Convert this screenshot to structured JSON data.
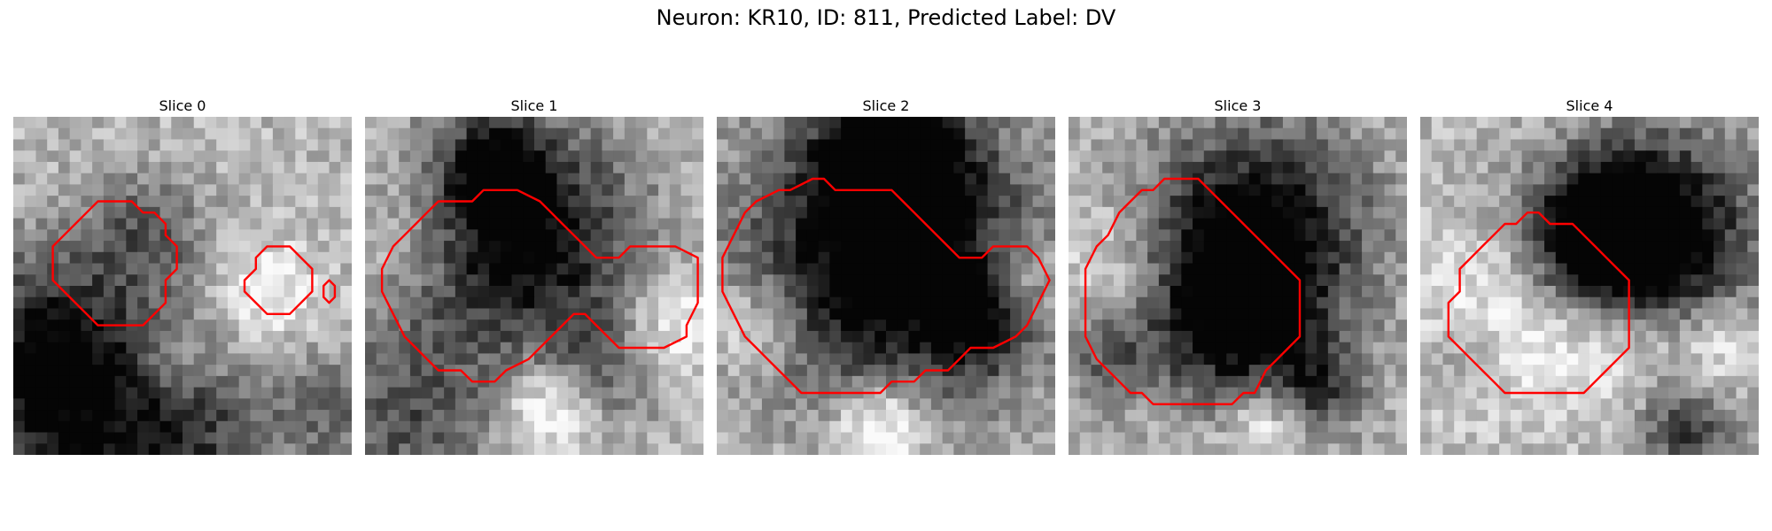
{
  "figure": {
    "title": "Neuron: KR10, ID: 811, Predicted Label: DV",
    "contour_color": "#ff0000"
  },
  "panels": [
    {
      "title": "Slice 0"
    },
    {
      "title": "Slice 1"
    },
    {
      "title": "Slice 2"
    },
    {
      "title": "Slice 3"
    },
    {
      "title": "Slice 4"
    }
  ]
}
